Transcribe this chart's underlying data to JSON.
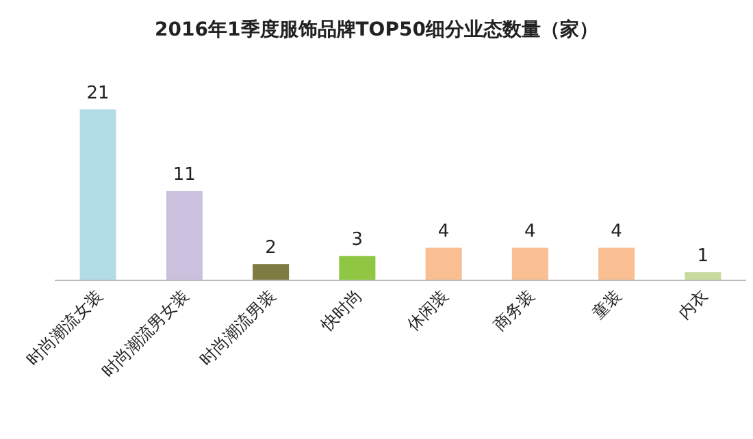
{
  "chart_data": {
    "type": "bar",
    "title": "2016年1季度服饰品牌TOP50细分业态数量（家）",
    "categories": [
      "时尚潮流女装",
      "时尚潮流男女装",
      "时尚潮流男装",
      "快时尚",
      "休闲装",
      "商务装",
      "童装",
      "内衣"
    ],
    "values": [
      21,
      11,
      2,
      3,
      4,
      4,
      4,
      1
    ],
    "colors": [
      "#b3dde6",
      "#cbc1de",
      "#7d7a42",
      "#8fc742",
      "#f9bf92",
      "#f9bf92",
      "#f9bf92",
      "#c8db9e"
    ],
    "data_labels": true
  }
}
